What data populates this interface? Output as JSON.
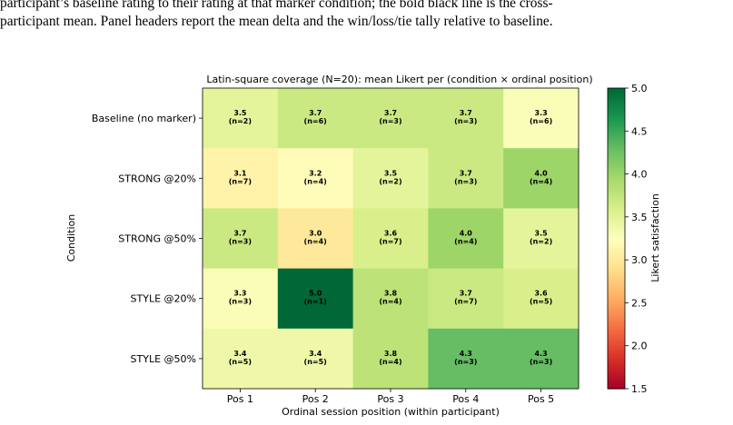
{
  "caption": {
    "line1": "participant’s baseline rating to their rating at that marker condition; the bold black line is the cross-",
    "line2": "participant mean. Panel headers report the mean delta and the win/loss/tie tally relative to baseline."
  },
  "chart_data": {
    "type": "heatmap",
    "title": "Latin-square coverage (N=20): mean Likert per (condition × ordinal position)",
    "xlabel": "Ordinal session position (within participant)",
    "ylabel": "Condition",
    "x_categories": [
      "Pos 1",
      "Pos 2",
      "Pos 3",
      "Pos 4",
      "Pos 5"
    ],
    "y_categories": [
      "Baseline (no marker)",
      "STRONG @20%",
      "STRONG @50%",
      "STYLE @20%",
      "STYLE @50%"
    ],
    "values": [
      [
        3.5,
        3.7,
        3.7,
        3.7,
        3.3
      ],
      [
        3.1,
        3.2,
        3.5,
        3.7,
        4.0
      ],
      [
        3.7,
        3.0,
        3.6,
        4.0,
        3.5
      ],
      [
        3.3,
        5.0,
        3.8,
        3.7,
        3.6
      ],
      [
        3.4,
        3.4,
        3.8,
        4.3,
        4.3
      ]
    ],
    "counts": [
      [
        2,
        6,
        3,
        3,
        6
      ],
      [
        7,
        4,
        2,
        3,
        4
      ],
      [
        3,
        4,
        7,
        4,
        2
      ],
      [
        3,
        1,
        4,
        7,
        5
      ],
      [
        5,
        5,
        4,
        3,
        3
      ]
    ],
    "colorbar": {
      "label": "Likert satisfaction",
      "range": [
        1.5,
        5.0
      ],
      "ticks": [
        "1.5",
        "2.0",
        "2.5",
        "3.0",
        "3.5",
        "4.0",
        "4.5",
        "5.0"
      ],
      "colormap": "RdYlGn"
    }
  }
}
